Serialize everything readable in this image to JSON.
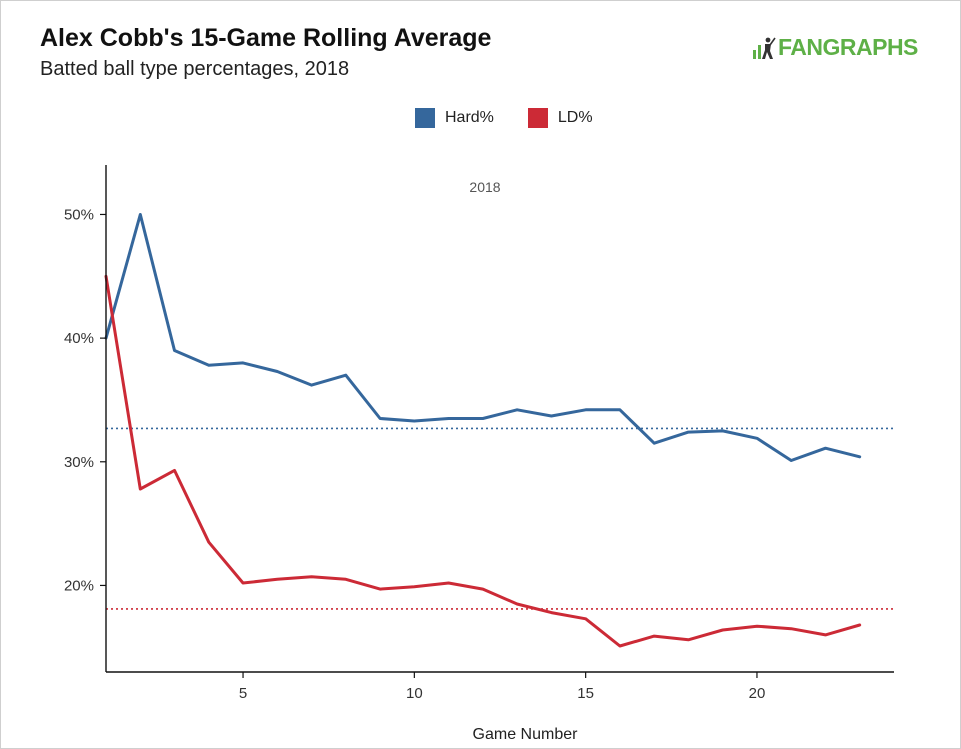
{
  "header": {
    "title": "Alex Cobb's 15-Game Rolling Average",
    "subtitle": "Batted ball type percentages, 2018",
    "brand": "FANGRAPHS"
  },
  "chart_data": {
    "type": "line",
    "title": "Alex Cobb's 15-Game Rolling Average",
    "subtitle": "Batted ball type percentages, 2018",
    "panel_label": "2018",
    "xlabel": "Game Number",
    "ylabel": "",
    "xlim": [
      1,
      24
    ],
    "ylim": [
      13,
      54
    ],
    "x_ticks": [
      5,
      10,
      15,
      20
    ],
    "y_ticks": [
      20,
      30,
      40,
      50
    ],
    "y_tick_labels": [
      "20%",
      "30%",
      "40%",
      "50%"
    ],
    "legend_position": "top",
    "grid": false,
    "x": [
      1,
      2,
      3,
      4,
      5,
      6,
      7,
      8,
      9,
      10,
      11,
      12,
      13,
      14,
      15,
      16,
      17,
      18,
      19,
      20,
      21,
      22,
      23
    ],
    "series": [
      {
        "name": "Hard%",
        "color": "#35679c",
        "values": [
          40.0,
          50.0,
          39.0,
          37.8,
          38.0,
          37.3,
          36.2,
          37.0,
          33.5,
          33.3,
          33.5,
          33.5,
          34.2,
          33.7,
          34.2,
          34.2,
          31.5,
          32.4,
          32.5,
          31.9,
          30.1,
          31.1,
          30.4
        ],
        "average": 32.7
      },
      {
        "name": "LD%",
        "color": "#cc2a36",
        "values": [
          45.0,
          27.8,
          29.3,
          23.5,
          20.2,
          20.5,
          20.7,
          20.5,
          19.7,
          19.9,
          20.2,
          19.7,
          18.5,
          17.8,
          17.3,
          15.1,
          15.9,
          15.6,
          16.4,
          16.7,
          16.5,
          16.0,
          16.8
        ],
        "average": 18.1
      }
    ]
  }
}
